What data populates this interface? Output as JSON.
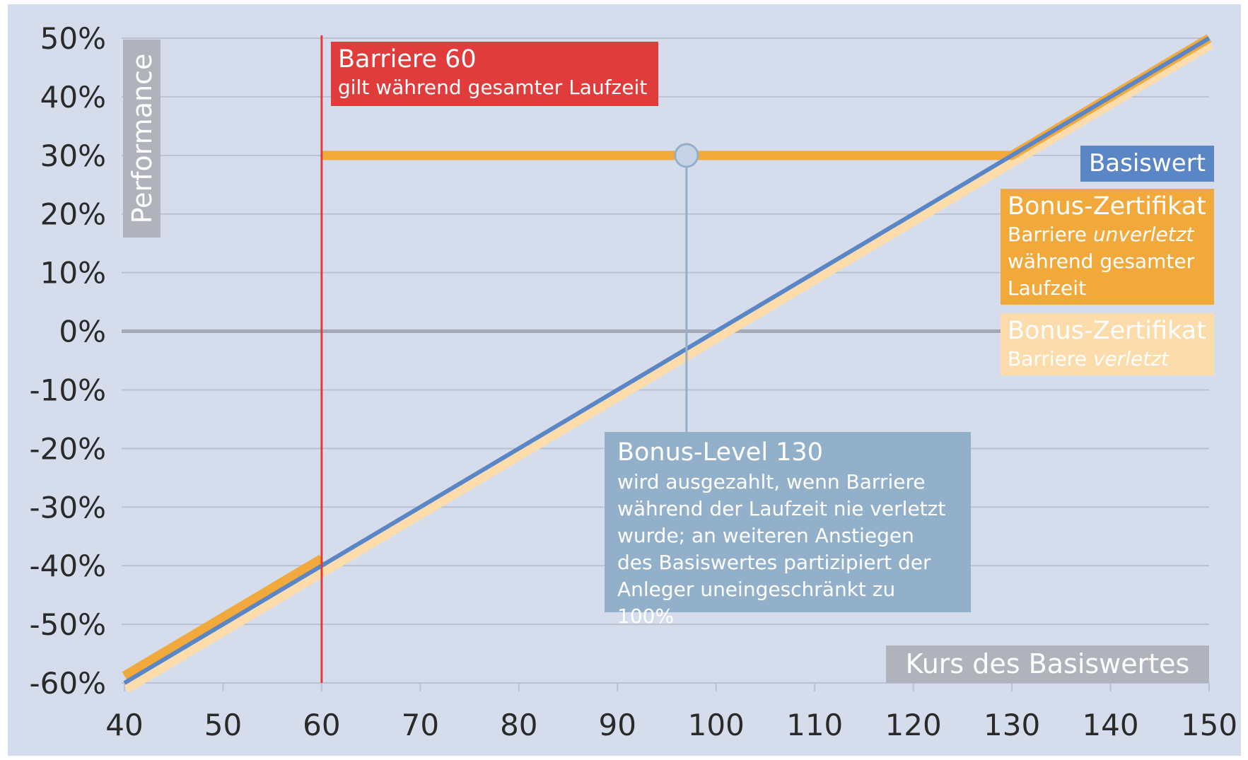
{
  "chart_data": {
    "type": "line",
    "xlabel": "Kurs des Basiswertes",
    "ylabel": "Performance",
    "x_ticks": [
      "40",
      "50",
      "60",
      "70",
      "80",
      "90",
      "100",
      "110",
      "120",
      "130",
      "140",
      "150"
    ],
    "y_ticks": [
      "50%",
      "40%",
      "30%",
      "20%",
      "10%",
      "0%",
      "-10%",
      "-20%",
      "-30%",
      "-40%",
      "-50%",
      "-60%"
    ],
    "xlim": [
      40,
      150
    ],
    "ylim": [
      -60,
      50
    ],
    "grid": true,
    "legend": "right",
    "series": [
      {
        "name": "Basiswert",
        "color": "#5b86c5",
        "x": [
          40,
          150
        ],
        "y": [
          -60,
          50
        ]
      },
      {
        "name": "Bonus-Zertifikat Barriere unverletzt während gesamter Laufzeit",
        "color": "#f2a93b",
        "x": [
          60,
          130,
          150
        ],
        "y": [
          30,
          30,
          50
        ]
      },
      {
        "name": "Bonus-Zertifikat Barriere verletzt",
        "color": "#fbdcaa",
        "x": [
          40,
          150
        ],
        "y": [
          -60,
          50
        ]
      }
    ],
    "barrier": {
      "x": 60,
      "title": "Barriere 60",
      "text": "gilt während gesamter Laufzeit",
      "color": "#e03c3c"
    },
    "bonus_level": {
      "x": 97,
      "y": 30,
      "title": "Bonus-Level 130",
      "lines": [
        "wird ausgezahlt, wenn Barriere",
        "während der Laufzeit nie verletzt",
        "wurde; an weiteren Anstiegen",
        "des Basiswertes partizipiert der",
        "Anleger uneingeschränkt zu 100%"
      ],
      "color": "#93b0cb"
    }
  },
  "legend": {
    "basiswert": "Basiswert",
    "unverletzt_title": "Bonus-Zertifikat",
    "unverletzt_line1_a": "Barriere ",
    "unverletzt_line1_b": "unverletzt",
    "unverletzt_line2": "während gesamter",
    "unverletzt_line3": "Laufzeit",
    "verletzt_title": "Bonus-Zertifikat",
    "verletzt_line1_a": "Barriere ",
    "verletzt_line1_b": "verletzt"
  },
  "colors": {
    "background": "#d5ddec",
    "grid": "#b9c1d3",
    "zero_line": "#a4a9b6",
    "axis_label_bg": "#b0b3bb",
    "basiswert": "#5b86c5",
    "bonus_unverletzt": "#f2a93b",
    "bonus_verletzt": "#fbdcaa",
    "barrier": "#e03c3c",
    "bonus_level": "#93b0cb"
  }
}
